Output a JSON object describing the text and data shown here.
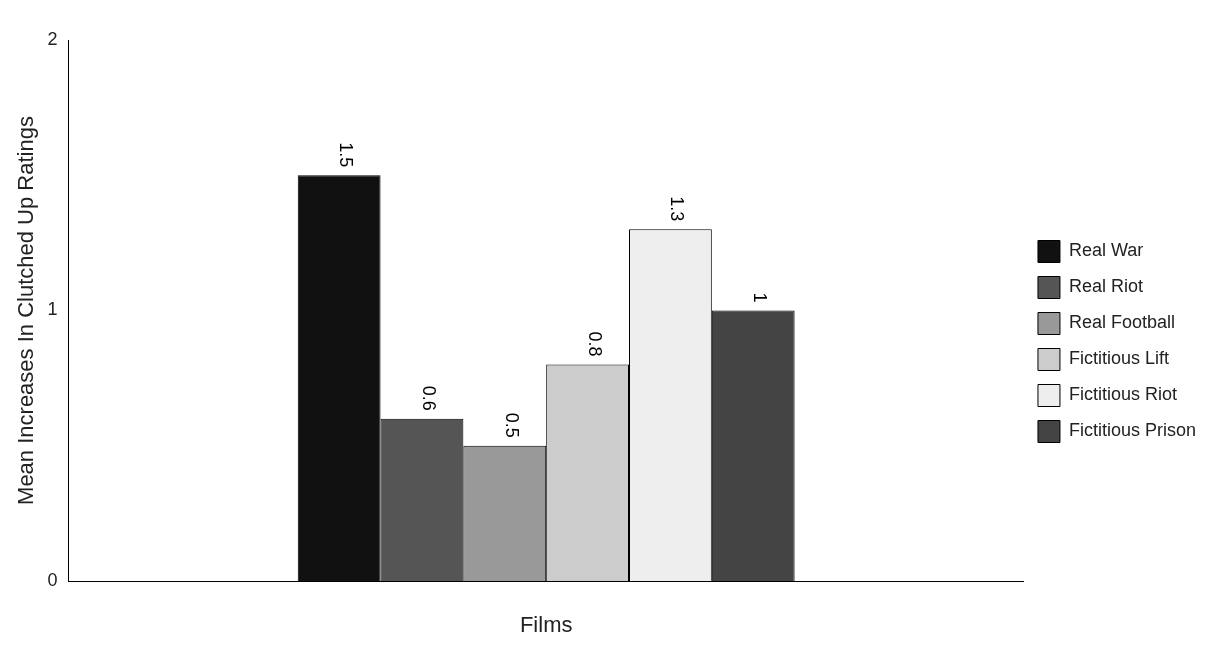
{
  "chart_data": {
    "type": "bar",
    "xlabel": "Films",
    "ylabel": "Mean Increases In Clutched Up Ratings",
    "categories": [
      null
    ],
    "series": [
      {
        "name": "Real War",
        "color": "#111111",
        "values": [
          1.5
        ]
      },
      {
        "name": "Real Riot",
        "color": "#555555",
        "values": [
          0.6
        ]
      },
      {
        "name": "Real Football",
        "color": "#999999",
        "values": [
          0.5
        ]
      },
      {
        "name": "Fictitious Lift",
        "color": "#cccccc",
        "values": [
          0.8
        ]
      },
      {
        "name": "Fictitious Riot",
        "color": "#eeeeee",
        "values": [
          1.3
        ]
      },
      {
        "name": "Fictitious Prison",
        "color": "#444444",
        "values": [
          1
        ]
      }
    ],
    "ylim": [
      0,
      2
    ],
    "yticks": [
      0,
      1,
      2
    ],
    "grid": false,
    "legend": "right",
    "data_labels": true
  }
}
